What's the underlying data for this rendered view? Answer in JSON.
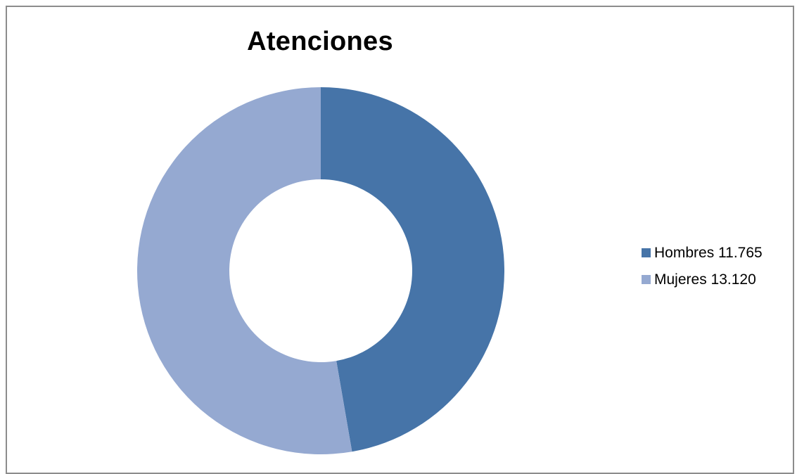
{
  "chart_data": {
    "type": "pie",
    "variant": "donut",
    "title": "Atenciones",
    "series": [
      {
        "name": "Hombres 11.765",
        "value": 11765,
        "color": "#4674a8"
      },
      {
        "name": "Mujeres 13.120",
        "value": 13120,
        "color": "#95a9d1"
      }
    ],
    "start_angle_deg": 0,
    "direction": "clockwise",
    "legend_position": "right"
  }
}
